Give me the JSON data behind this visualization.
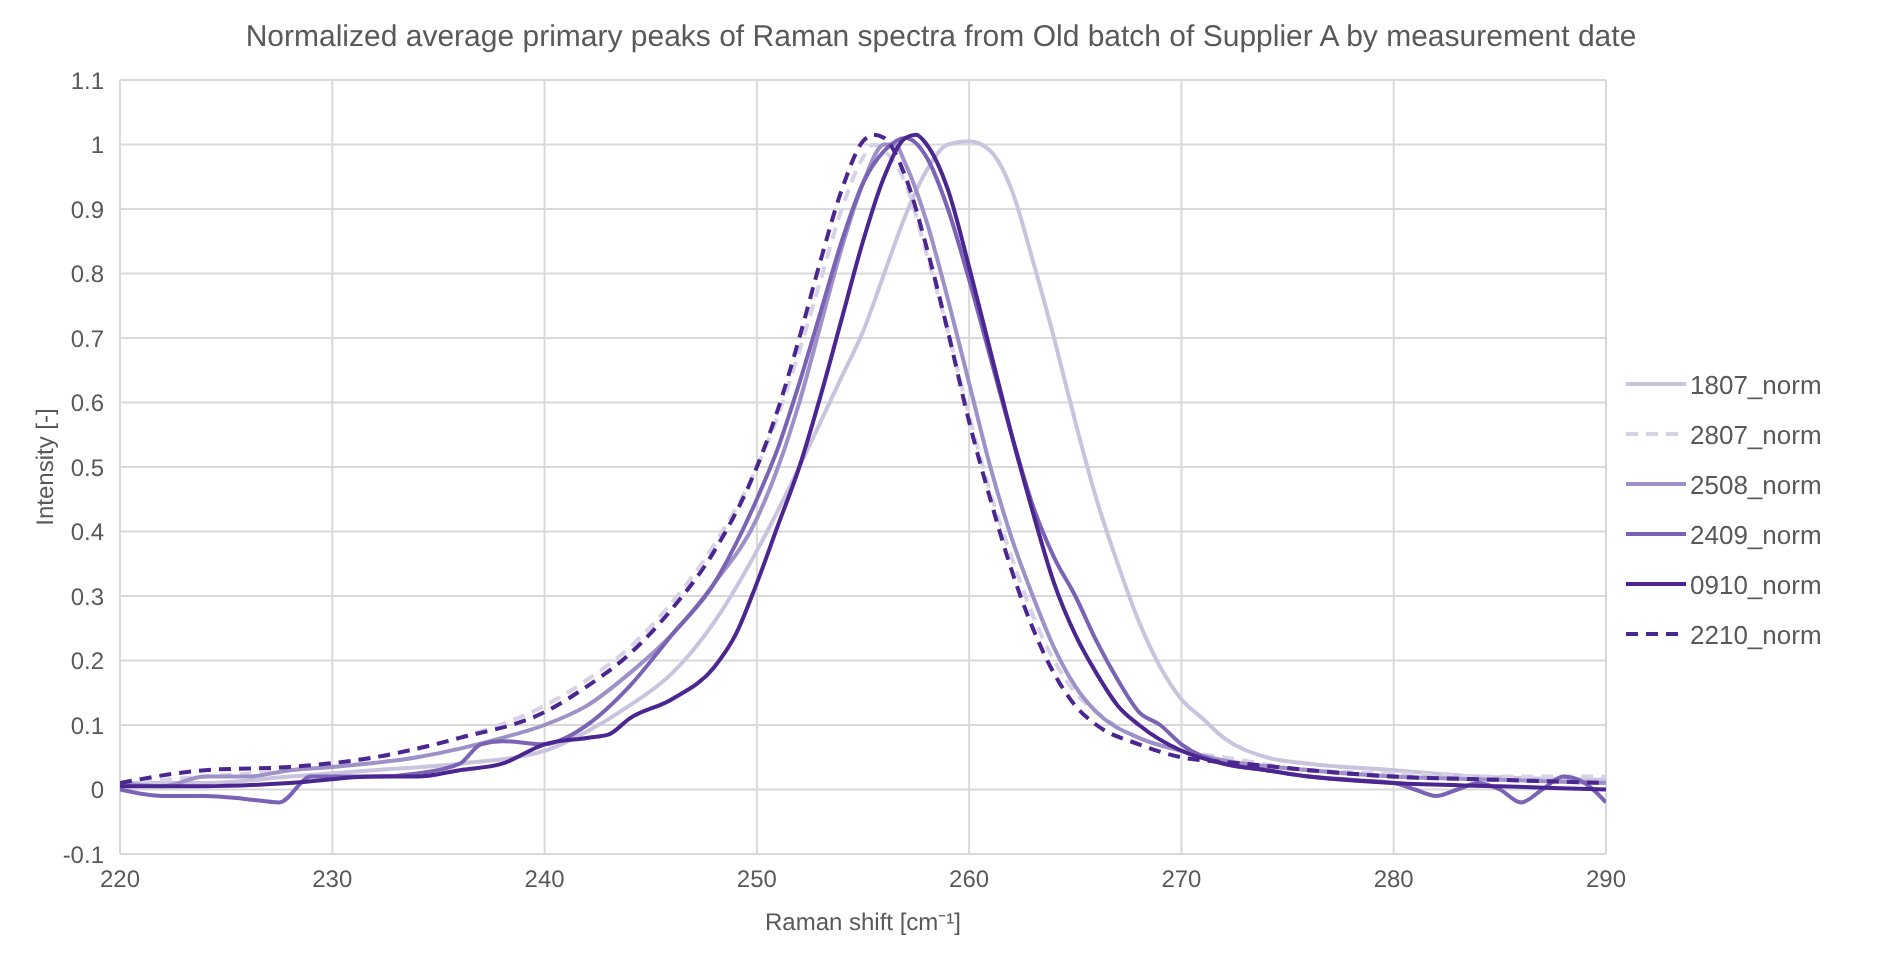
{
  "chart_data": {
    "type": "line",
    "title": "Normalized average primary peaks of Raman spectra from Old batch of Supplier A by measurement date",
    "xlabel": "Raman shift [cm⁻¹]",
    "ylabel": "Intensity [-]",
    "xlim": [
      220,
      290
    ],
    "xticks": [
      220,
      230,
      240,
      250,
      260,
      270,
      280,
      290
    ],
    "ylim": [
      -0.1,
      1.1
    ],
    "yticks": [
      -0.1,
      0,
      0.1,
      0.2,
      0.3,
      0.4,
      0.5,
      0.6,
      0.7,
      0.8,
      0.9,
      1,
      1.1
    ],
    "grid": true,
    "legend": "right",
    "marker": "none",
    "series": [
      {
        "name": "1807_norm",
        "color": "#c9c3de",
        "line_style": "solid",
        "x": [
          220,
          224,
          228,
          232,
          236,
          240,
          242,
          244,
          246,
          248,
          250,
          252,
          253,
          254,
          255,
          256,
          257,
          258,
          259,
          260,
          261,
          262,
          263,
          264,
          265,
          266,
          267,
          268,
          269,
          270,
          271,
          272,
          274,
          276,
          280,
          284,
          290
        ],
        "values": [
          0.01,
          0.01,
          0.02,
          0.03,
          0.04,
          0.06,
          0.09,
          0.13,
          0.18,
          0.26,
          0.37,
          0.5,
          0.57,
          0.64,
          0.71,
          0.8,
          0.89,
          0.96,
          1.0,
          1.005,
          0.99,
          0.93,
          0.82,
          0.7,
          0.57,
          0.45,
          0.35,
          0.26,
          0.19,
          0.14,
          0.11,
          0.08,
          0.05,
          0.04,
          0.03,
          0.02,
          0.015
        ]
      },
      {
        "name": "2807_norm",
        "color": "#d7d2e6",
        "line_style": "dashed",
        "x": [
          220,
          224,
          228,
          232,
          236,
          240,
          242,
          244,
          246,
          248,
          250,
          251,
          252,
          253,
          254,
          255,
          255.5,
          256,
          257,
          258,
          259,
          260,
          261,
          262,
          263,
          264,
          265,
          266,
          268,
          270,
          272,
          276,
          280,
          285,
          290
        ],
        "values": [
          0.01,
          0.02,
          0.03,
          0.05,
          0.08,
          0.13,
          0.17,
          0.22,
          0.29,
          0.38,
          0.5,
          0.58,
          0.68,
          0.79,
          0.9,
          0.98,
          1.0,
          0.99,
          0.94,
          0.83,
          0.71,
          0.58,
          0.46,
          0.36,
          0.27,
          0.2,
          0.15,
          0.12,
          0.08,
          0.06,
          0.05,
          0.03,
          0.025,
          0.02,
          0.02
        ]
      },
      {
        "name": "2508_norm",
        "color": "#9e91c8",
        "line_style": "solid",
        "x": [
          220,
          222,
          224,
          226,
          228,
          230,
          234,
          238,
          240,
          242,
          244,
          246,
          248,
          250,
          251,
          252,
          253,
          254,
          255,
          256,
          256.5,
          257,
          258,
          259,
          260,
          261,
          262,
          263,
          264,
          265,
          266,
          268,
          270,
          272,
          276,
          280,
          285,
          290
        ],
        "values": [
          0.01,
          0.005,
          0.02,
          0.02,
          0.03,
          0.035,
          0.05,
          0.08,
          0.1,
          0.13,
          0.18,
          0.24,
          0.32,
          0.42,
          0.5,
          0.6,
          0.72,
          0.84,
          0.94,
          1.0,
          1.0,
          0.97,
          0.88,
          0.76,
          0.63,
          0.5,
          0.39,
          0.3,
          0.22,
          0.16,
          0.12,
          0.08,
          0.06,
          0.045,
          0.03,
          0.02,
          0.015,
          0.01
        ]
      },
      {
        "name": "2409_norm",
        "color": "#7a63b5",
        "line_style": "solid",
        "x": [
          220,
          222,
          224,
          226,
          227.5,
          229,
          230,
          232,
          234,
          236,
          237,
          238,
          240,
          241,
          242,
          244,
          246,
          248,
          249,
          250,
          251,
          252,
          253,
          254,
          255,
          256,
          257,
          258,
          259,
          260,
          261,
          262,
          263,
          264,
          265,
          266,
          267,
          268,
          269,
          270,
          272,
          274,
          276,
          278,
          280,
          281,
          282,
          283,
          284,
          285,
          286,
          287,
          288,
          289,
          290
        ],
        "values": [
          0.0,
          -0.01,
          -0.01,
          -0.015,
          -0.02,
          0.02,
          0.02,
          0.02,
          0.025,
          0.04,
          0.07,
          0.075,
          0.07,
          0.08,
          0.1,
          0.16,
          0.24,
          0.32,
          0.38,
          0.45,
          0.53,
          0.63,
          0.74,
          0.85,
          0.94,
          0.99,
          1.01,
          0.98,
          0.9,
          0.79,
          0.67,
          0.55,
          0.44,
          0.36,
          0.3,
          0.23,
          0.17,
          0.12,
          0.1,
          0.07,
          0.04,
          0.03,
          0.02,
          0.015,
          0.01,
          0.0,
          -0.01,
          0.0,
          0.01,
          0.0,
          -0.02,
          0.0,
          0.02,
          0.01,
          -0.02
        ]
      },
      {
        "name": "0910_norm",
        "color": "#4b2590",
        "line_style": "solid",
        "x": [
          220,
          224,
          228,
          232,
          234,
          236,
          238,
          240,
          242,
          243,
          244,
          246,
          248,
          249,
          250,
          251,
          252,
          253,
          254,
          255,
          256,
          257,
          257.5,
          258,
          259,
          260,
          261,
          262,
          263,
          264,
          265,
          266,
          267,
          268,
          270,
          272,
          274,
          276,
          280,
          285,
          290
        ],
        "values": [
          0.005,
          0.005,
          0.01,
          0.02,
          0.02,
          0.03,
          0.04,
          0.07,
          0.08,
          0.085,
          0.11,
          0.14,
          0.19,
          0.24,
          0.32,
          0.41,
          0.5,
          0.61,
          0.73,
          0.85,
          0.95,
          1.01,
          1.015,
          1.0,
          0.93,
          0.81,
          0.68,
          0.55,
          0.43,
          0.32,
          0.24,
          0.18,
          0.13,
          0.1,
          0.06,
          0.04,
          0.03,
          0.02,
          0.01,
          0.005,
          0.0
        ]
      },
      {
        "name": "2210_norm",
        "color": "#4b2590",
        "line_style": "dashed",
        "x": [
          220,
          224,
          228,
          232,
          236,
          240,
          242,
          244,
          246,
          248,
          250,
          251,
          252,
          253,
          254,
          255,
          255.5,
          256,
          257,
          258,
          259,
          260,
          261,
          262,
          263,
          264,
          265,
          266,
          268,
          270,
          273,
          276,
          280,
          285,
          290
        ],
        "values": [
          0.01,
          0.03,
          0.035,
          0.05,
          0.08,
          0.12,
          0.16,
          0.21,
          0.28,
          0.37,
          0.5,
          0.59,
          0.7,
          0.82,
          0.93,
          1.005,
          1.015,
          1.01,
          0.95,
          0.84,
          0.71,
          0.57,
          0.45,
          0.34,
          0.25,
          0.18,
          0.13,
          0.1,
          0.07,
          0.05,
          0.04,
          0.03,
          0.02,
          0.015,
          0.01
        ]
      }
    ]
  }
}
